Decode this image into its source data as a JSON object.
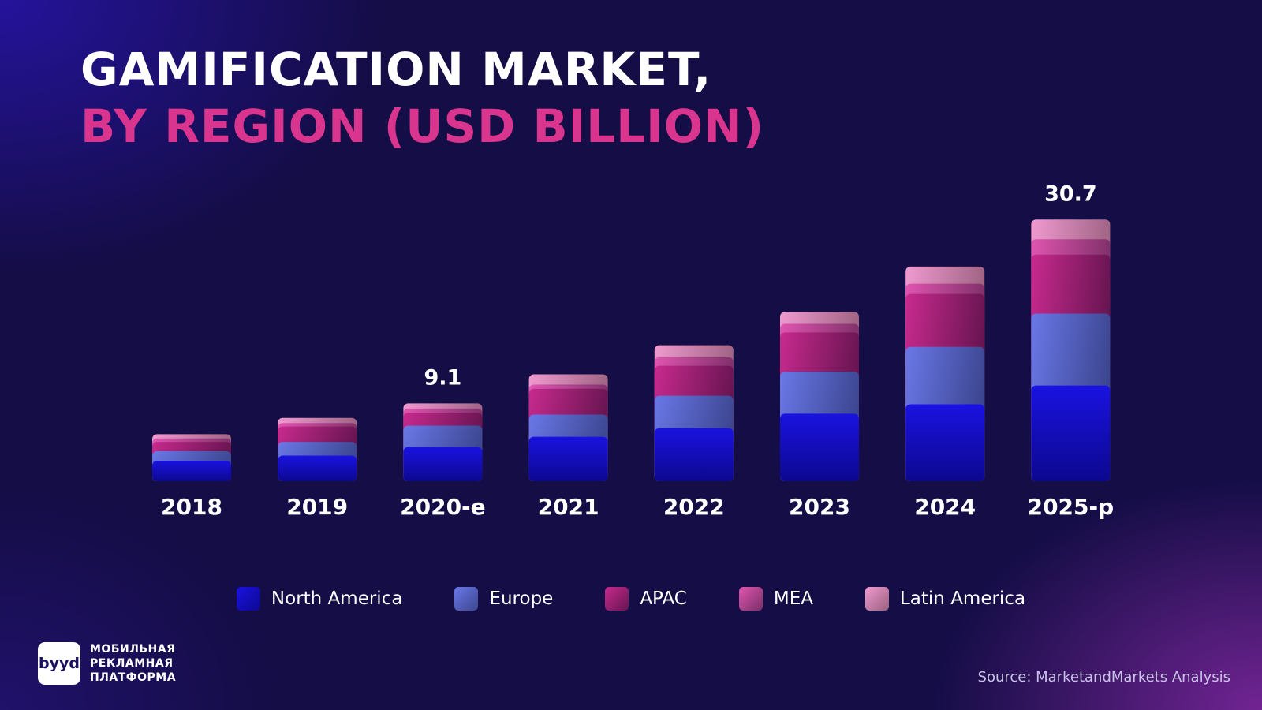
{
  "title_line1": "GAMIFICATION MARKET,",
  "title_line2": "BY REGION (USD BILLION)",
  "chart_data": {
    "type": "bar",
    "stacked": true,
    "categories": [
      "2018",
      "2019",
      "2020-e",
      "2021",
      "2022",
      "2023",
      "2024",
      "2025-p"
    ],
    "series": [
      {
        "name": "North America",
        "color": "#1a12e0",
        "values": [
          2.4,
          3.0,
          4.0,
          5.2,
          6.2,
          7.9,
          9.0,
          11.2
        ]
      },
      {
        "name": "Europe",
        "color": "#6a78e8",
        "values": [
          1.1,
          1.6,
          2.5,
          2.6,
          3.8,
          4.9,
          6.7,
          8.4
        ]
      },
      {
        "name": "APAC",
        "color": "#c82a8e",
        "values": [
          1.1,
          1.8,
          1.5,
          3.0,
          3.5,
          4.6,
          6.2,
          6.9
        ]
      },
      {
        "name": "MEA",
        "color": "#e055b0",
        "values": [
          0.4,
          0.4,
          0.5,
          0.5,
          1.0,
          1.0,
          1.2,
          1.8
        ]
      },
      {
        "name": "Latin America",
        "color": "#f09ad0",
        "values": [
          0.5,
          0.6,
          0.6,
          1.2,
          1.4,
          1.4,
          2.0,
          2.3
        ]
      }
    ],
    "data_labels": [
      {
        "category": "2020-e",
        "text": "9.1"
      },
      {
        "category": "2025-p",
        "text": "30.7"
      }
    ],
    "ylim": [
      0,
      31
    ],
    "grid": false,
    "legend": "bottom"
  },
  "brand": {
    "logo_text": "byyd",
    "tagline": [
      "МОБИЛЬНАЯ",
      "РЕКЛАМНАЯ",
      "ПЛАТФОРМА"
    ]
  },
  "source": "Source: MarketandMarkets Analysis"
}
